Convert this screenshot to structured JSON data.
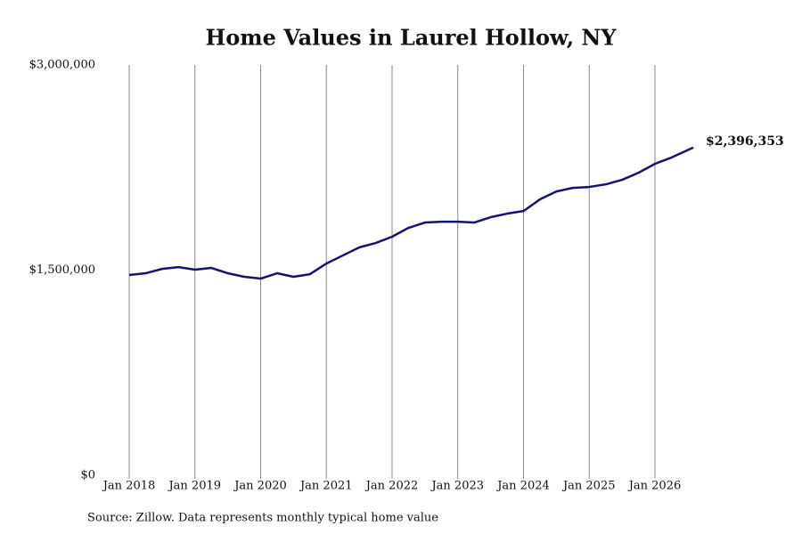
{
  "chart_data": {
    "type": "line",
    "title": "Home Values in Laurel Hollow, NY",
    "source": "Source: Zillow. Data represents monthly typical home value",
    "x": [
      "2018-01",
      "2018-04",
      "2018-07",
      "2018-10",
      "2019-01",
      "2019-04",
      "2019-07",
      "2019-10",
      "2020-01",
      "2020-04",
      "2020-07",
      "2020-10",
      "2021-01",
      "2021-04",
      "2021-07",
      "2021-10",
      "2022-01",
      "2022-04",
      "2022-07",
      "2022-10",
      "2023-01",
      "2023-04",
      "2023-07",
      "2023-10",
      "2024-01",
      "2024-04",
      "2024-07",
      "2024-10",
      "2025-01",
      "2025-04",
      "2025-07",
      "2025-10",
      "2026-01",
      "2026-04",
      "2026-08"
    ],
    "values": [
      1464000,
      1477000,
      1509000,
      1522000,
      1503000,
      1516000,
      1477000,
      1451000,
      1438000,
      1477000,
      1451000,
      1470000,
      1548000,
      1607000,
      1666000,
      1698000,
      1744000,
      1809000,
      1848000,
      1854000,
      1854000,
      1848000,
      1887000,
      1913000,
      1932000,
      2017000,
      2075000,
      2101000,
      2108000,
      2127000,
      2160000,
      2212000,
      2277000,
      2323000,
      2396353
    ],
    "value_labels": [
      null,
      null,
      null,
      null,
      null,
      null,
      null,
      null,
      null,
      null,
      null,
      null,
      null,
      null,
      null,
      null,
      null,
      null,
      null,
      null,
      null,
      null,
      null,
      null,
      null,
      null,
      null,
      null,
      null,
      null,
      null,
      null,
      null,
      null,
      "$2,396,353"
    ],
    "color": "#14146b",
    "xlim": [
      "2018-01",
      "2026-08"
    ],
    "xticks": [
      {
        "value": "2018-01",
        "label": "Jan 2018"
      },
      {
        "value": "2019-01",
        "label": "Jan 2019"
      },
      {
        "value": "2020-01",
        "label": "Jan 2020"
      },
      {
        "value": "2021-01",
        "label": "Jan 2021"
      },
      {
        "value": "2022-01",
        "label": "Jan 2022"
      },
      {
        "value": "2023-01",
        "label": "Jan 2023"
      },
      {
        "value": "2024-01",
        "label": "Jan 2024"
      },
      {
        "value": "2025-01",
        "label": "Jan 2025"
      },
      {
        "value": "2026-01",
        "label": "Jan 2026"
      }
    ],
    "ylim": [
      0,
      3000000
    ],
    "yticks": [
      {
        "value": 0,
        "label": "$0"
      },
      {
        "value": 1500000,
        "label": "$1,500,000"
      },
      {
        "value": 3000000,
        "label": "$3,000,000"
      }
    ],
    "grid": true
  }
}
